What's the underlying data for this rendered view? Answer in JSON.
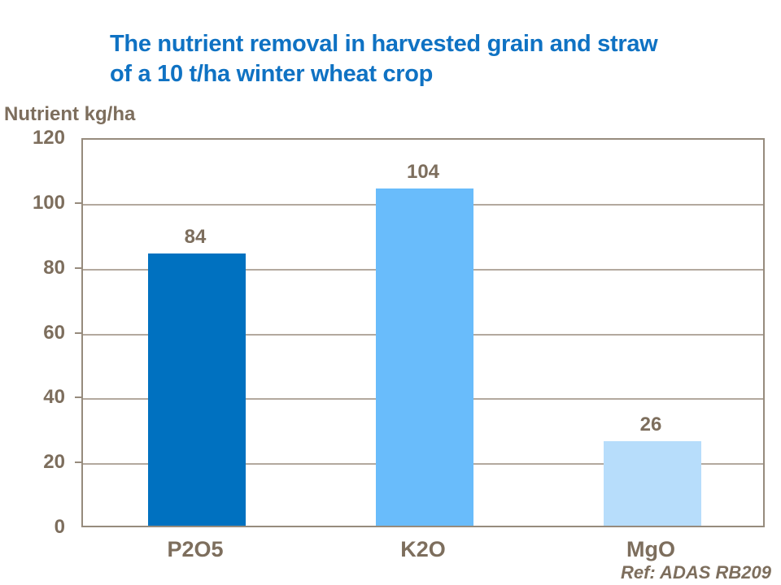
{
  "header": {
    "title_line1": "The nutrient removal in harvested grain and straw",
    "title_line2": "of a 10 t/ha winter wheat crop",
    "title_color": "#0F72C3"
  },
  "chart_data": {
    "type": "bar",
    "title": "The nutrient removal in harvested grain and straw of a 10 t/ha winter wheat crop",
    "categories": [
      "P2O5",
      "K2O",
      "MgO"
    ],
    "values": [
      84,
      104,
      26
    ],
    "value_labels": [
      "84",
      "104",
      "26"
    ],
    "bar_colors": [
      "#0071C0",
      "#69BCFB",
      "#B7DDFB"
    ],
    "xlabel": "",
    "ylabel": "Nutrient kg/ha",
    "ylim": [
      0,
      120
    ],
    "yticks": [
      0,
      20,
      40,
      60,
      80,
      100,
      120
    ],
    "grid": "horizontal gridlines every 20",
    "legend": "none",
    "label_color": "#7D6E5D",
    "gridline_color": "#B3A99E",
    "axis_color": "#968B7D"
  },
  "footer": {
    "ref_label": "Ref: ADAS RB209"
  }
}
